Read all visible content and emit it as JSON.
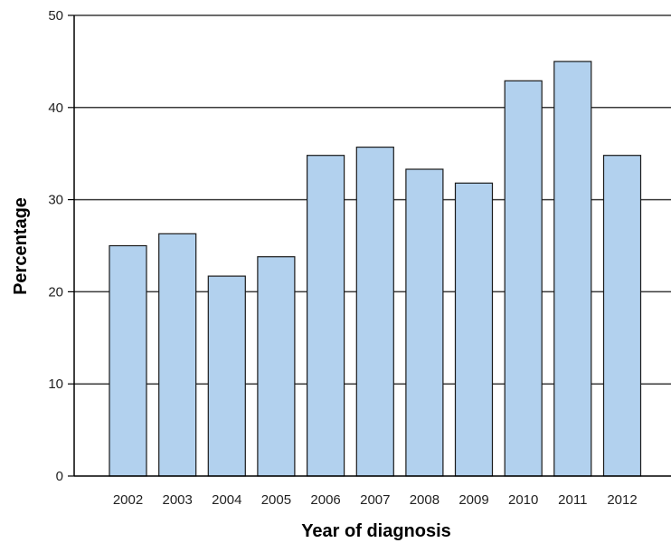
{
  "chart_data": {
    "type": "bar",
    "categories": [
      "2002",
      "2003",
      "2004",
      "2005",
      "2006",
      "2007",
      "2008",
      "2009",
      "2010",
      "2011",
      "2012"
    ],
    "values": [
      25.0,
      26.3,
      21.7,
      23.8,
      34.8,
      35.7,
      33.3,
      31.8,
      42.9,
      45.0,
      34.8
    ],
    "title": "",
    "xlabel": "Year of diagnosis",
    "ylabel": "Percentage",
    "ylim": [
      0,
      50
    ],
    "yticks": [
      0,
      10,
      20,
      30,
      40,
      50
    ],
    "grid": true,
    "legend": "none",
    "colors": {
      "bar": "#b2d1ee",
      "bar_edge": "#1a1a1a",
      "grid": "#3a3a3a",
      "axis": "#000000"
    }
  }
}
